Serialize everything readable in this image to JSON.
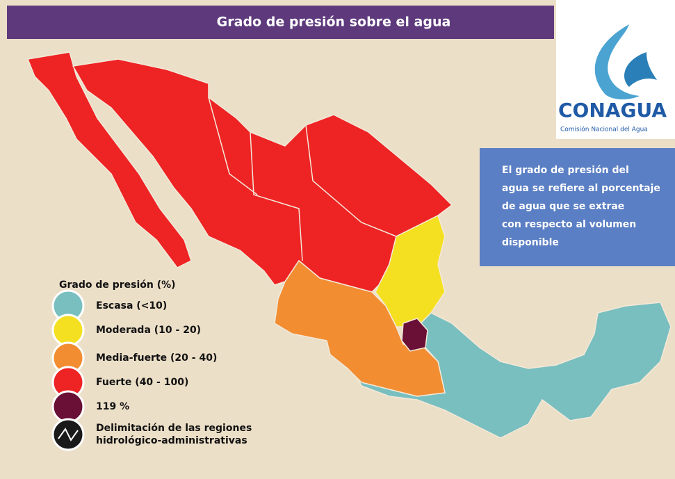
{
  "title": "Grado de presión sobre el agua",
  "logo": {
    "name": "CONAGUA",
    "subtitle": "Comisión Nacional del Agua"
  },
  "info_text": [
    "El grado de presión del",
    "agua se refiere al porcentaje",
    "de agua que se extrae",
    "con respecto al volumen",
    "disponible"
  ],
  "legend": {
    "title": "Grado de presión (%)",
    "items": [
      {
        "label": [
          "Escasa (<10)"
        ],
        "color": "#79bfbf"
      },
      {
        "label": [
          "Moderada (10 - 20)"
        ],
        "color": "#f4e021"
      },
      {
        "label": [
          "Media-fuerte (20 - 40)"
        ],
        "color": "#f28d32"
      },
      {
        "label": [
          "Fuerte (40 - 100)"
        ],
        "color": "#ee2324"
      },
      {
        "label": [
          "119 %"
        ],
        "color": "#6a0f35"
      },
      {
        "label": [
          "Delimitación de las regiones",
          "hidrológico-administrativas"
        ],
        "color": "#1a1a1a"
      }
    ]
  }
}
